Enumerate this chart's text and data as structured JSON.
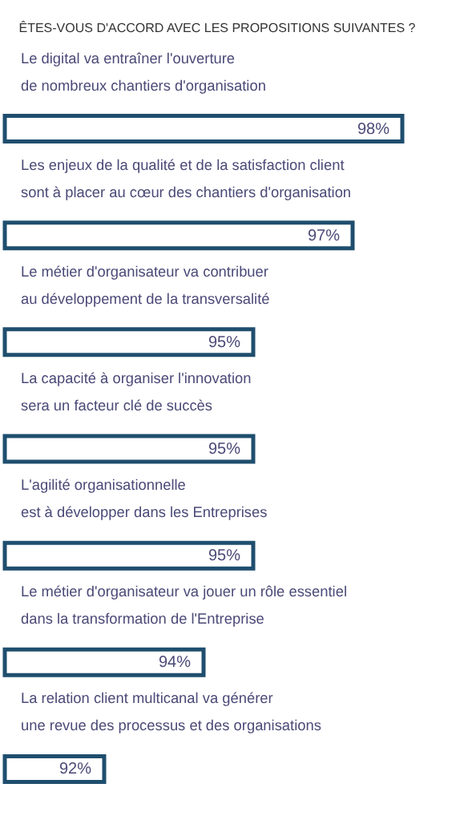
{
  "chart_data": {
    "type": "bar",
    "orientation": "horizontal",
    "title": "ÊTES-VOUS D'ACCORD AVEC LES PROPOSITIONS SUIVANTES ?",
    "categories": [
      "Le digital va entraîner l'ouverture\nde nombreux chantiers d'organisation",
      "Les enjeux de la qualité et de la satisfaction client\nsont à placer au cœur des chantiers d'organisation",
      "Le métier d'organisateur va contribuer\nau développement de la transversalité",
      "La capacité à organiser l'innovation\nsera un facteur clé de succès",
      "L'agilité organisationnelle\nest à développer dans les Entreprises",
      "Le métier d'organisateur va jouer un rôle essentiel\ndans la transformation de l'Entreprise",
      "La relation client multicanal va générer\nune revue des processus et des organisations"
    ],
    "values": [
      98,
      97,
      95,
      95,
      95,
      94,
      92
    ],
    "value_labels": [
      "98%",
      "97%",
      "95%",
      "95%",
      "95%",
      "94%",
      "92%"
    ],
    "color": "#1f4e6e",
    "xlim": [
      90,
      98
    ],
    "tick_labels": false
  }
}
